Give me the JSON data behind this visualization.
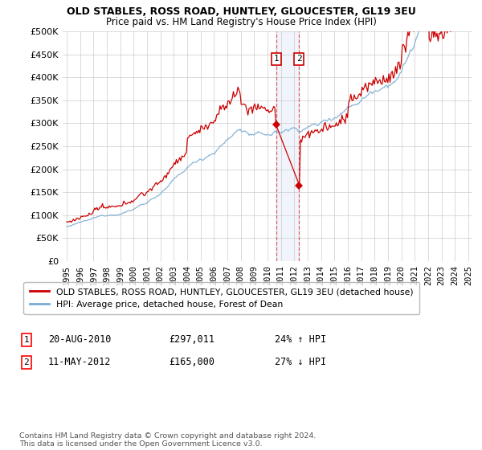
{
  "title": "OLD STABLES, ROSS ROAD, HUNTLEY, GLOUCESTER, GL19 3EU",
  "subtitle": "Price paid vs. HM Land Registry's House Price Index (HPI)",
  "legend_label_red": "OLD STABLES, ROSS ROAD, HUNTLEY, GLOUCESTER, GL19 3EU (detached house)",
  "legend_label_blue": "HPI: Average price, detached house, Forest of Dean",
  "annotation1_num": "1",
  "annotation1_date": "20-AUG-2010",
  "annotation1_price": "£297,011",
  "annotation1_pct": "24% ↑ HPI",
  "annotation2_num": "2",
  "annotation2_date": "11-MAY-2012",
  "annotation2_price": "£165,000",
  "annotation2_pct": "27% ↓ HPI",
  "footer": "Contains HM Land Registry data © Crown copyright and database right 2024.\nThis data is licensed under the Open Government Licence v3.0.",
  "ylim": [
    0,
    500000
  ],
  "yticks": [
    0,
    50000,
    100000,
    150000,
    200000,
    250000,
    300000,
    350000,
    400000,
    450000,
    500000
  ],
  "year_start": 1995,
  "year_end": 2025,
  "color_red": "#cc0000",
  "color_blue": "#7aadd4",
  "color_highlight": "#ddeeff",
  "sale1_year": 2010.64,
  "sale2_year": 2012.36,
  "sale1_price": 297011,
  "sale2_price": 165000,
  "background_color": "#ffffff",
  "grid_color": "#cccccc"
}
